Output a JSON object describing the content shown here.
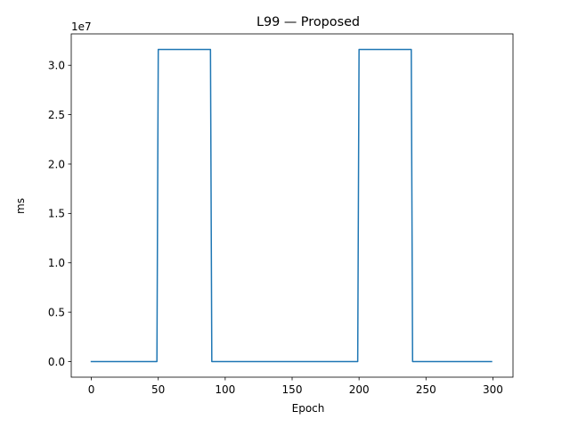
{
  "chart_data": {
    "type": "line",
    "title": "L99 — Proposed",
    "xlabel": "Epoch",
    "ylabel": "ms",
    "y_offset_label": "1e7",
    "xlim": [
      -15,
      315
    ],
    "ylim": [
      -1580000,
      33180000
    ],
    "x_ticks": [
      0,
      50,
      100,
      150,
      200,
      250,
      300
    ],
    "x_tick_labels": [
      "0",
      "50",
      "100",
      "150",
      "200",
      "250",
      "300"
    ],
    "y_ticks": [
      0,
      5000000,
      10000000,
      15000000,
      20000000,
      25000000,
      30000000
    ],
    "y_tick_labels": [
      "0.0",
      "0.5",
      "1.0",
      "1.5",
      "2.0",
      "2.5",
      "3.0"
    ],
    "grid": false,
    "colors": {
      "line": "#1f77b4"
    },
    "series": [
      {
        "x": [
          0,
          49,
          50,
          89,
          90,
          199,
          200,
          239,
          240,
          299
        ],
        "values": [
          0,
          0,
          31600000,
          31600000,
          0,
          0,
          31600000,
          31600000,
          0,
          0
        ]
      }
    ]
  }
}
